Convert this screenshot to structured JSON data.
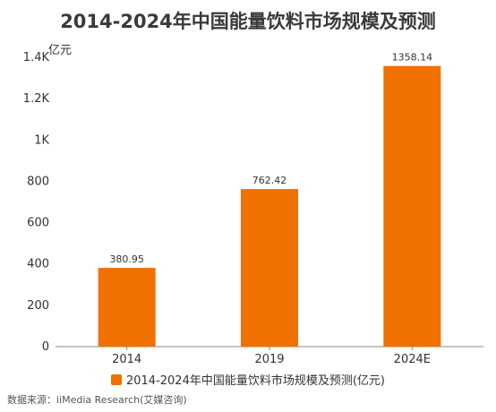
{
  "chart_data": {
    "type": "bar",
    "title": "2014-2024年中国能量饮料市场规模及预测",
    "y_unit": "亿元",
    "categories": [
      "2014",
      "2019",
      "2024E"
    ],
    "series": [
      {
        "name": "2014-2024年中国能量饮料市场规模及预测(亿元)",
        "values": [
          380.95,
          762.42,
          1358.14
        ]
      }
    ],
    "value_labels": [
      "380.95",
      "762.42",
      "1358.14"
    ],
    "ylim": [
      0,
      1400
    ],
    "yticks": [
      0,
      200,
      400,
      600,
      800,
      1000,
      1200,
      1400
    ],
    "ytick_labels": [
      "0",
      "200",
      "400",
      "600",
      "800",
      "1K",
      "1.2K",
      "1.4K"
    ],
    "grid": false,
    "legend_position": "bottom",
    "bar_color": "#f07000"
  },
  "source": "数据来源：iiMedia Research(艾媒咨询)"
}
